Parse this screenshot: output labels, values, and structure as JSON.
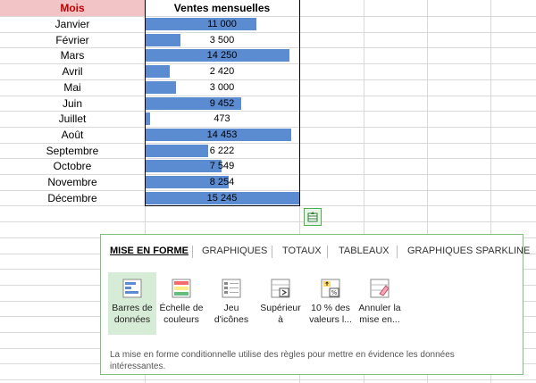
{
  "table": {
    "header_month": "Mois",
    "header_sales": "Ventes mensuelles",
    "max_value": 15245,
    "rows": [
      {
        "month": "Janvier",
        "value": 11000,
        "label": "11 000"
      },
      {
        "month": "Février",
        "value": 3500,
        "label": "3 500"
      },
      {
        "month": "Mars",
        "value": 14250,
        "label": "14 250"
      },
      {
        "month": "Avril",
        "value": 2420,
        "label": "2 420"
      },
      {
        "month": "Mai",
        "value": 3000,
        "label": "3 000"
      },
      {
        "month": "Juin",
        "value": 9452,
        "label": "9 452"
      },
      {
        "month": "Juillet",
        "value": 473,
        "label": "473"
      },
      {
        "month": "Août",
        "value": 14453,
        "label": "14 453"
      },
      {
        "month": "Septembre",
        "value": 6222,
        "label": "6 222"
      },
      {
        "month": "Octobre",
        "value": 7549,
        "label": "7 549"
      },
      {
        "month": "Novembre",
        "value": 8254,
        "label": "8 254"
      },
      {
        "month": "Décembre",
        "value": 15245,
        "label": "15 245"
      }
    ],
    "bar_color": "#5b8bd0",
    "header_month_bg": "#f2c4c6",
    "header_month_color": "#c00000"
  },
  "quick_analysis": {
    "button_icon": "quick-analysis-icon",
    "tabs": [
      "MISE EN FORME",
      "GRAPHIQUES",
      "TOTAUX",
      "TABLEAUX",
      "GRAPHIQUES SPARKLINE"
    ],
    "active_tab": "MISE EN FORME",
    "tools": [
      {
        "line1": "Barres de",
        "line2": "données",
        "icon": "data-bars-icon"
      },
      {
        "line1": "Échelle de",
        "line2": "couleurs",
        "icon": "color-scale-icon"
      },
      {
        "line1": "Jeu",
        "line2": "d'icônes",
        "icon": "icon-set-icon"
      },
      {
        "line1": "Supérieur",
        "line2": "à",
        "icon": "greater-than-icon"
      },
      {
        "line1": "10 % des",
        "line2": "valeurs l...",
        "icon": "top-ten-icon"
      },
      {
        "line1": "Annuler la",
        "line2": "mise en...",
        "icon": "clear-format-icon"
      }
    ],
    "description": "La mise en forme conditionnelle utilise des règles pour mettre en évidence les données intéressantes."
  }
}
